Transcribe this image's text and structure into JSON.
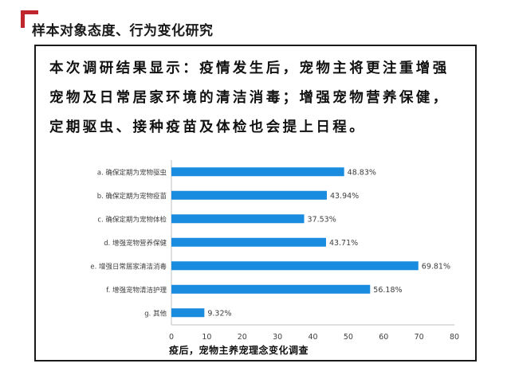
{
  "section_title": "样本对象态度、行为变化研究",
  "finding_lines": [
    "本次调研结果显示：疫情发生后，宠物主将更注重增强",
    "宠物及日常居家环境的清洁消毒；增强宠物营养保健，",
    "定期驱虫、接种疫苗及体检也会提上日程。"
  ],
  "colors": {
    "accent": "#c0262d",
    "bar": "#1a8ce0"
  },
  "chart_data": {
    "type": "bar",
    "orientation": "horizontal",
    "categories": [
      "a. 确保定期为宠物驱虫",
      "b. 确保定期为宠物疫苗",
      "c. 确保定期为宠物体检",
      "d. 增强宠物营养保健",
      "e. 增强日常居家清洁消毒",
      "f. 增强宠物清洁护理",
      "g. 其他"
    ],
    "values": [
      48.83,
      43.94,
      37.53,
      43.71,
      69.81,
      56.18,
      9.32
    ],
    "value_labels": [
      "48.83%",
      "43.94%",
      "37.53%",
      "43.71%",
      "69.81%",
      "56.18%",
      "9.32%"
    ],
    "x_ticks": [
      0,
      10,
      20,
      30,
      40,
      50,
      60,
      70,
      80
    ],
    "xlim": [
      0,
      80
    ],
    "xlabel": "疫后，宠物主养宠理念变化调查",
    "grid": false
  }
}
